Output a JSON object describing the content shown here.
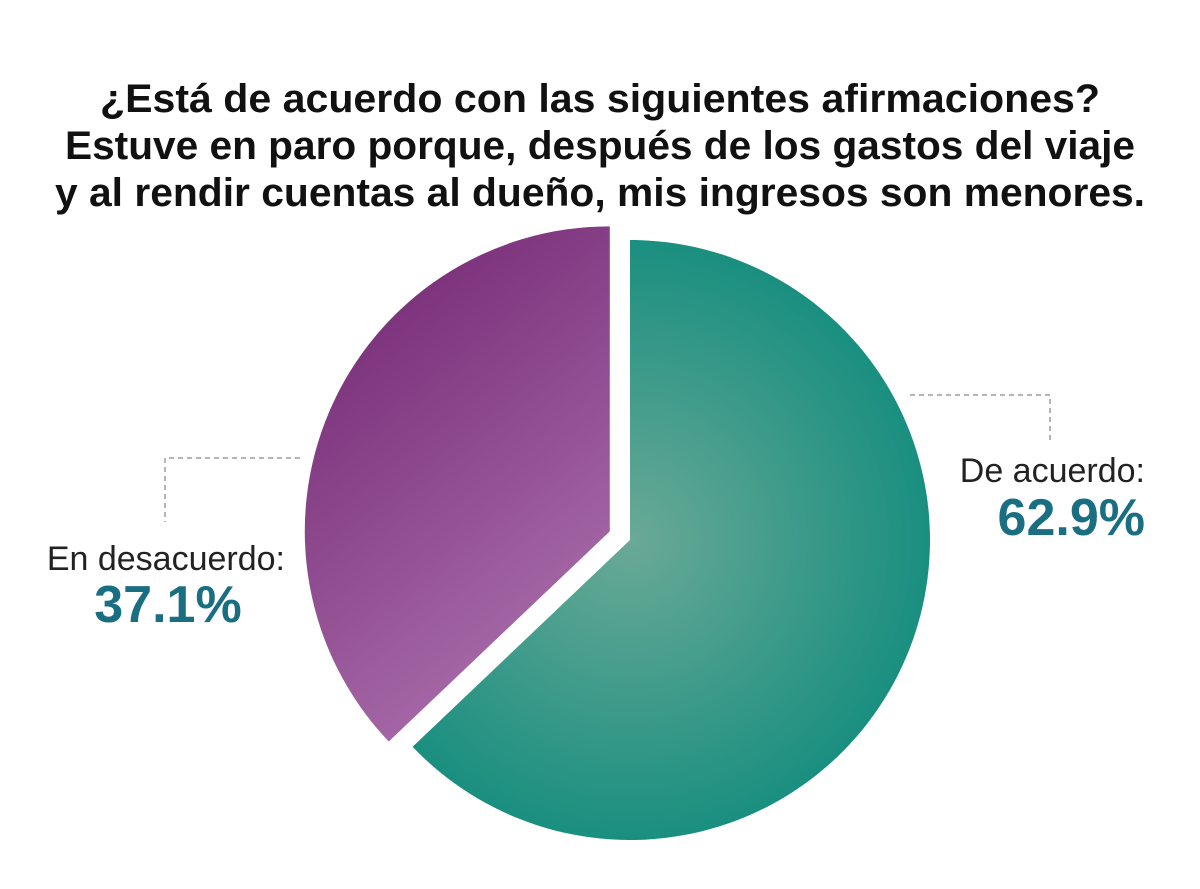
{
  "chart_data": {
    "type": "pie",
    "title": [
      "¿Está de acuerdo con las siguientes afirmaciones?",
      "Estuve en paro porque, después de los gastos del viaje",
      "y al rendir cuentas al dueño, mis ingresos son menores."
    ],
    "slices": [
      {
        "label": "De acuerdo:",
        "value": 62.9,
        "display": "62.9%",
        "color": "#1a8f80",
        "color_light": "#6aa996"
      },
      {
        "label": "En desacuerdo:",
        "value": 37.1,
        "display": "37.1%",
        "color": "#772c76",
        "color_light": "#a96dab"
      }
    ],
    "value_color": "#1a6e82"
  }
}
